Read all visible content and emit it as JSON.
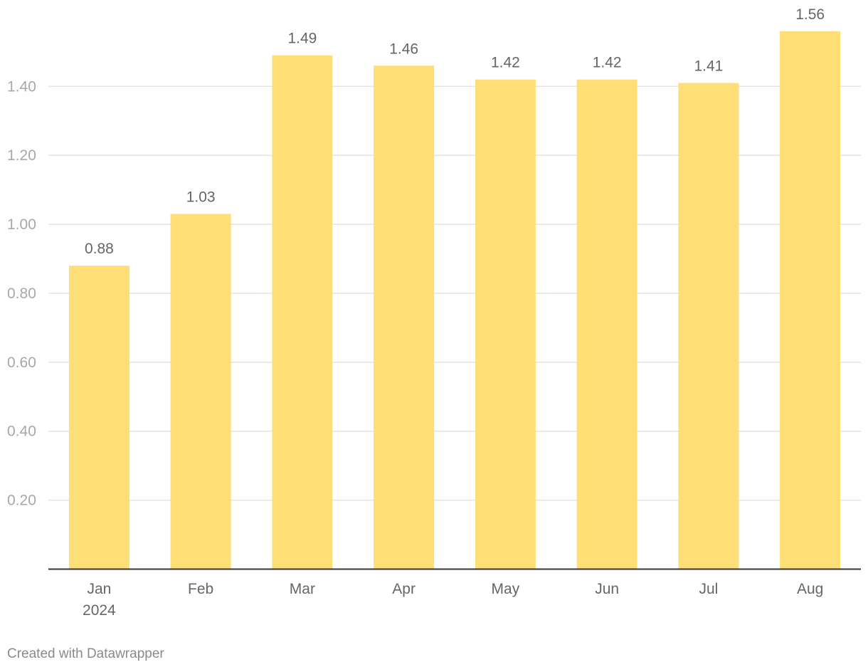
{
  "chart_data": {
    "type": "bar",
    "categories": [
      "Jan",
      "Feb",
      "Mar",
      "Apr",
      "May",
      "Jun",
      "Jul",
      "Aug"
    ],
    "category_sublabels": [
      "2024",
      "",
      "",
      "",
      "",
      "",
      "",
      ""
    ],
    "values": [
      0.88,
      1.03,
      1.49,
      1.46,
      1.42,
      1.42,
      1.41,
      1.56
    ],
    "value_labels": [
      "0.88",
      "1.03",
      "1.49",
      "1.46",
      "1.42",
      "1.42",
      "1.41",
      "1.56"
    ],
    "title": "",
    "xlabel": "",
    "ylabel": "",
    "ylim": [
      0,
      1.6
    ],
    "yticks": [
      0.2,
      0.4,
      0.6,
      0.8,
      1.0,
      1.2,
      1.4
    ],
    "ytick_labels": [
      "0.20",
      "0.40",
      "0.60",
      "0.80",
      "1.00",
      "1.20",
      "1.40"
    ],
    "grid": true,
    "legend": "none",
    "bar_color": "#fdde77",
    "gridline_color": "#e3e3e3",
    "baseline_color": "#333333"
  },
  "footer": {
    "credit": "Created with Datawrapper"
  }
}
